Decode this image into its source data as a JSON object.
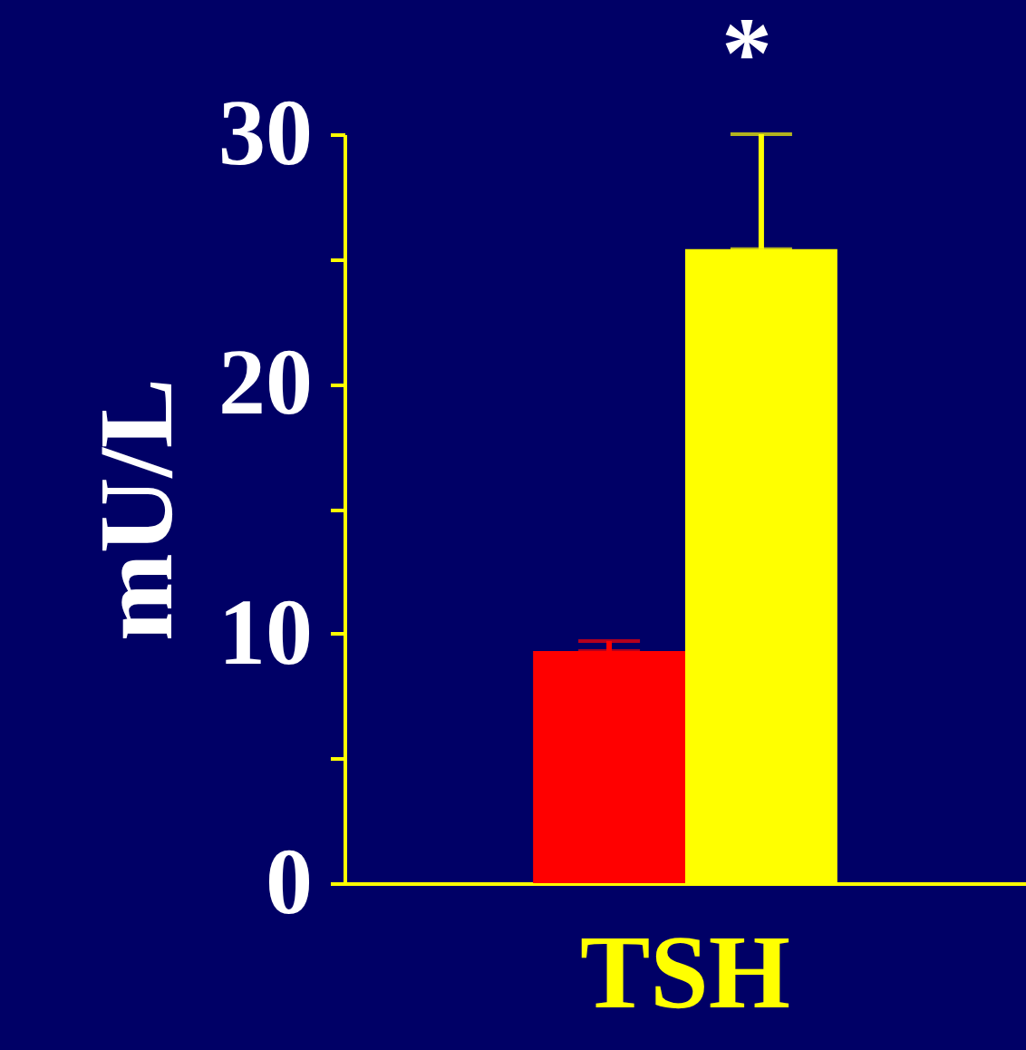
{
  "chart_data": {
    "type": "bar",
    "ylabel": "mU/L",
    "categories": [
      "TSH"
    ],
    "series": [
      {
        "color": "#ff0000",
        "values": [
          9.3
        ],
        "errors": [
          0.4
        ]
      },
      {
        "color": "#ffff00",
        "values": [
          25.4
        ],
        "errors": [
          4.6
        ]
      }
    ],
    "ylim": [
      0,
      30
    ],
    "yticks": [
      0,
      {
        "value": 5,
        "label": null
      },
      10,
      {
        "value": 15,
        "label": null
      },
      20,
      {
        "value": 25,
        "label": null
      },
      30
    ],
    "annotations": [
      "*"
    ],
    "grid": false
  }
}
